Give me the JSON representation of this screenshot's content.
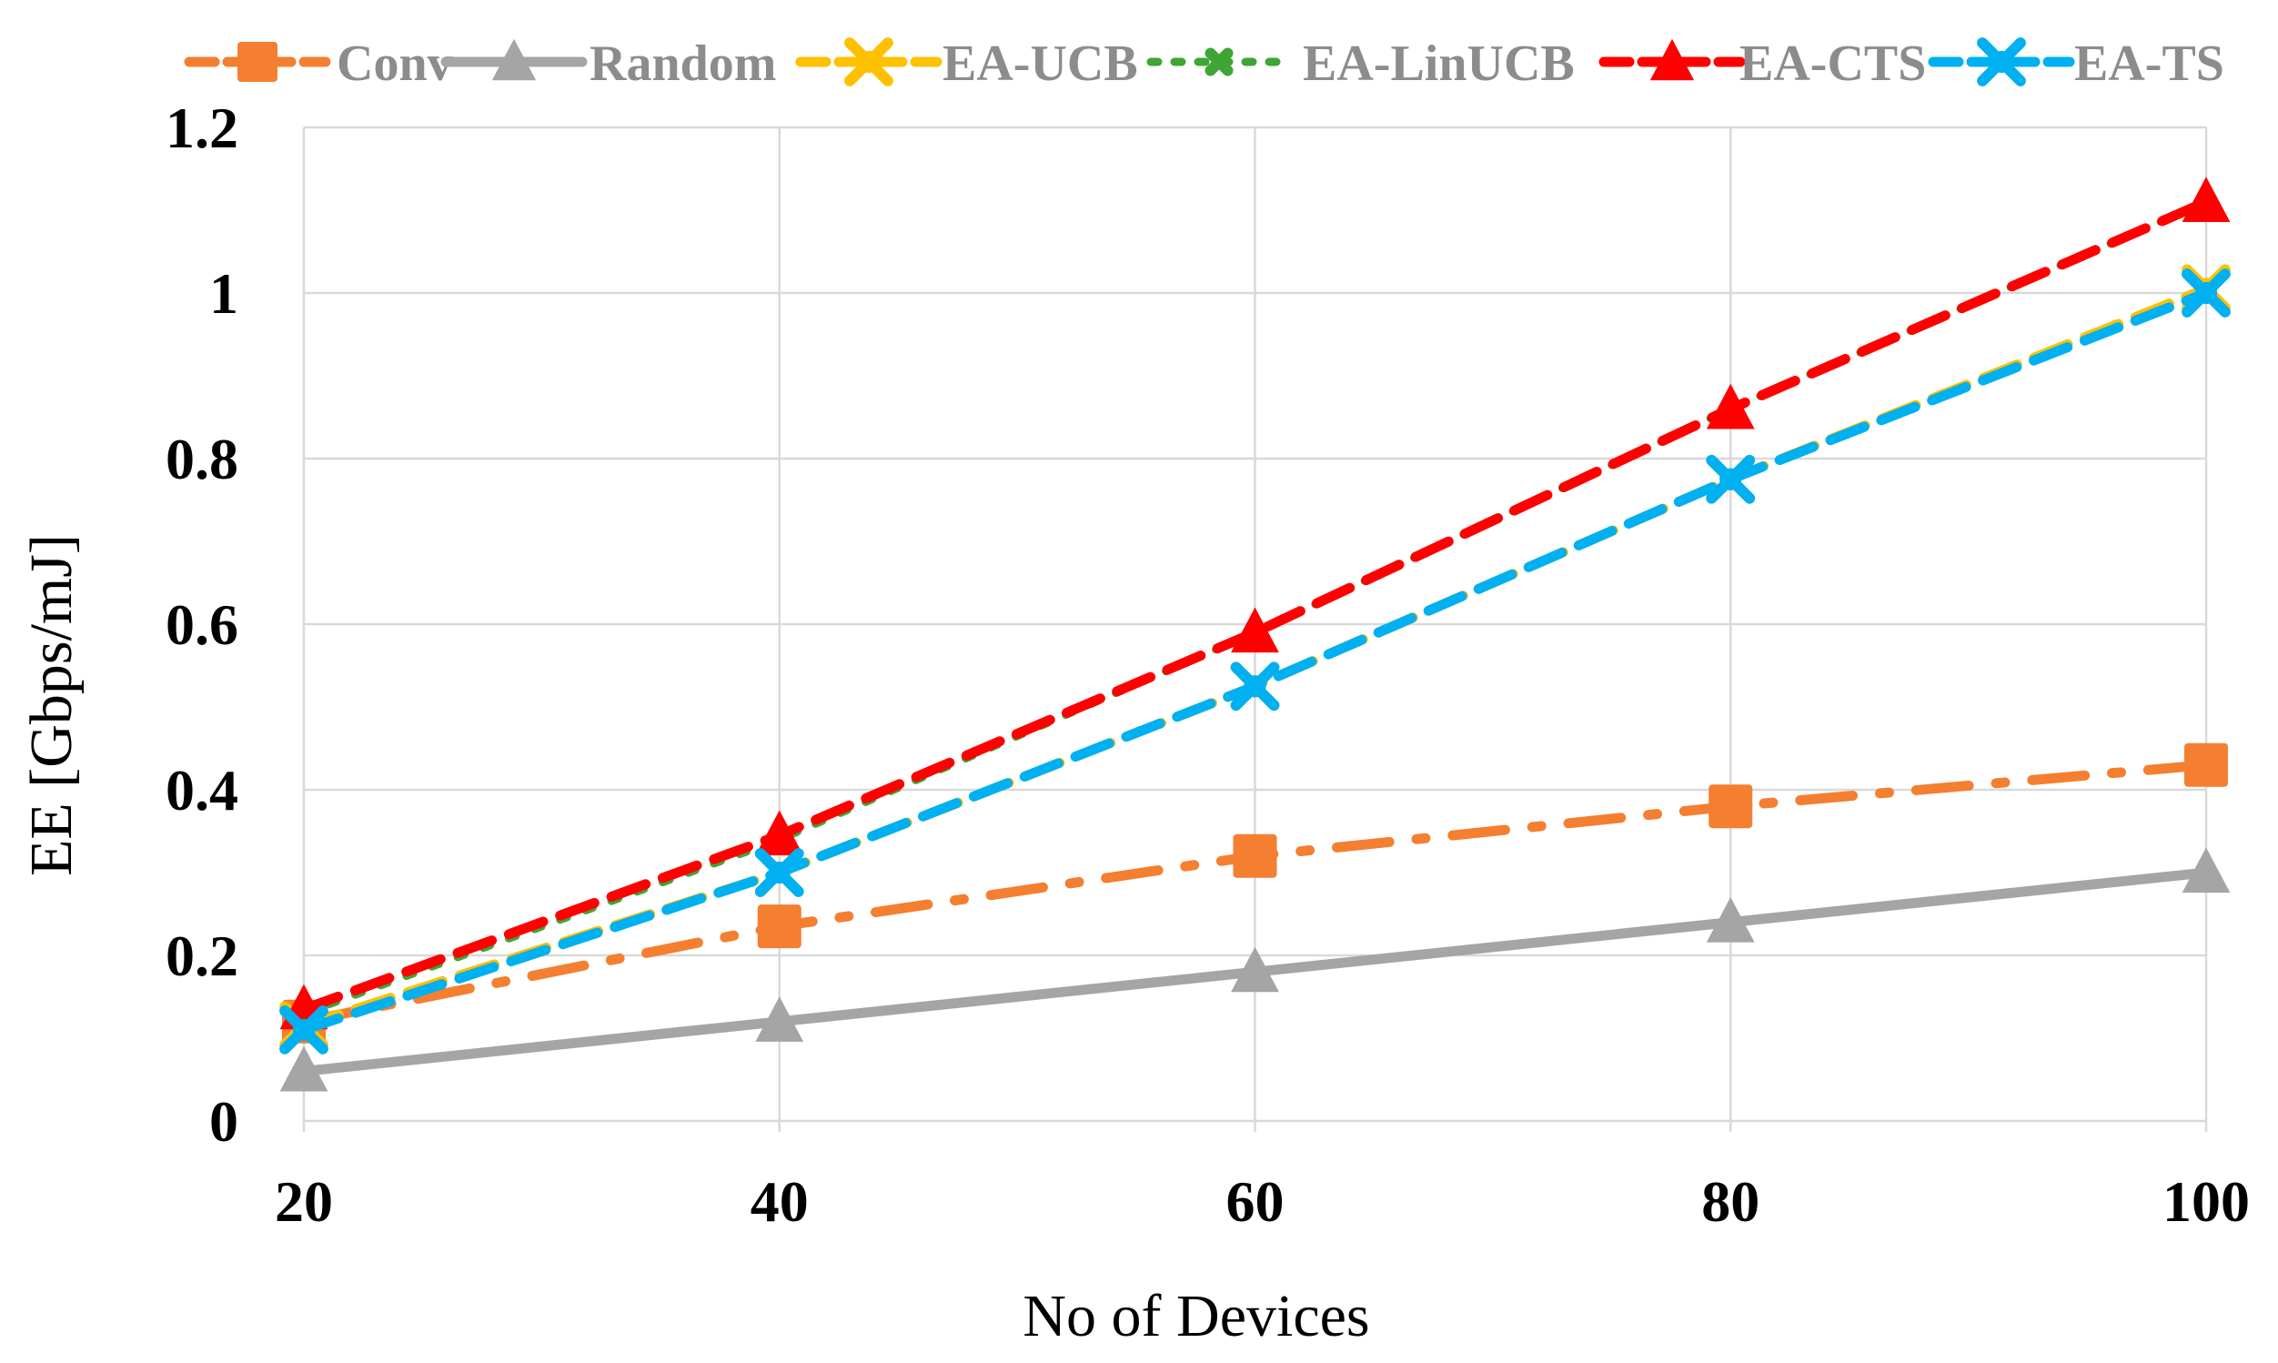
{
  "chart_data": {
    "type": "line",
    "title": "",
    "xlabel": "No of Devices",
    "ylabel": "EE  [Gbps/mJ]",
    "x": [
      20,
      40,
      60,
      80,
      100
    ],
    "x_tick_labels": [
      "20",
      "40",
      "60",
      "80",
      "100"
    ],
    "y_tick_labels": [
      "0",
      "0.2",
      "0.4",
      "0.6",
      "0.8",
      "1",
      "1.2"
    ],
    "xlim": [
      20,
      100
    ],
    "ylim": [
      0,
      1.2
    ],
    "grid": true,
    "legend_position": "top",
    "series": [
      {
        "name": "Conv",
        "values": [
          0.12,
          0.235,
          0.32,
          0.38,
          0.43
        ],
        "color": "#F47F30",
        "dash": "long-dash-dot",
        "marker": "square"
      },
      {
        "name": "Random",
        "values": [
          0.06,
          0.12,
          0.18,
          0.24,
          0.3
        ],
        "color": "#A5A5A5",
        "dash": "solid",
        "marker": "triangle"
      },
      {
        "name": "EA-UCB",
        "values": [
          0.115,
          0.3,
          0.525,
          0.775,
          1.005
        ],
        "color": "#FFC000",
        "dash": "dash",
        "marker": "x"
      },
      {
        "name": "EA-LinUCB",
        "values": [
          0.13,
          0.34,
          0.59,
          0.86,
          1.11
        ],
        "color": "#3FA535",
        "dash": "dot",
        "marker": "x"
      },
      {
        "name": "EA-CTS",
        "values": [
          0.135,
          0.345,
          0.59,
          0.86,
          1.11
        ],
        "color": "#FF0000",
        "dash": "dash",
        "marker": "triangle"
      },
      {
        "name": "EA-TS",
        "values": [
          0.11,
          0.3,
          0.525,
          0.775,
          1.0
        ],
        "color": "#00B0F0",
        "dash": "dash",
        "marker": "x"
      }
    ]
  }
}
